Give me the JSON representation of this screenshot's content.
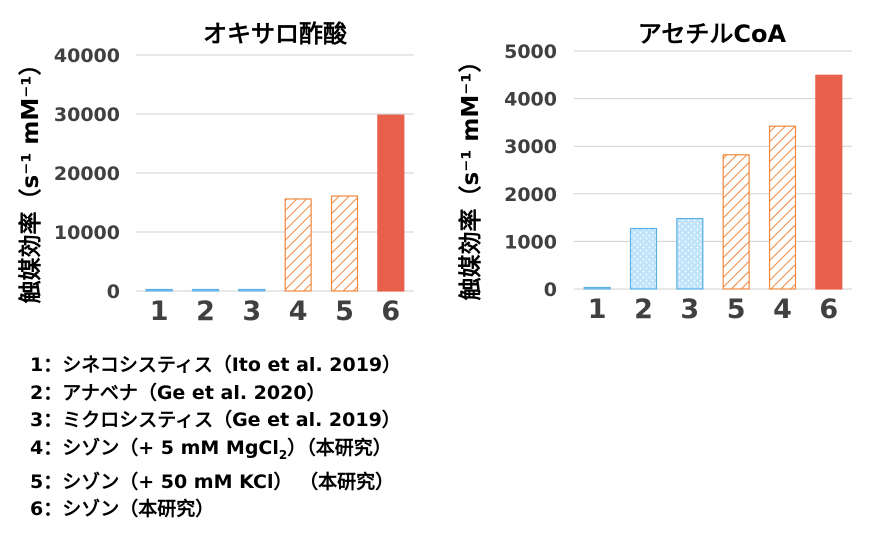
{
  "chart_data": [
    {
      "type": "bar",
      "title": "オキサロ酢酸",
      "ylabel": "触媒効率（s⁻¹ mM⁻¹）",
      "categories": [
        "1",
        "2",
        "3",
        "4",
        "5",
        "6"
      ],
      "values": [
        80,
        150,
        200,
        15600,
        16100,
        29800
      ],
      "ylim": [
        0,
        40000
      ],
      "yticks": [
        "0",
        "10000",
        "20000",
        "30000",
        "40000"
      ],
      "grid": true
    },
    {
      "type": "bar",
      "title": "アセチルCoA",
      "ylabel": "触媒効率（s⁻¹ mM⁻¹）",
      "categories": [
        "1",
        "2",
        "3",
        "5",
        "4",
        "6"
      ],
      "values": [
        20,
        1270,
        1480,
        2820,
        3420,
        4490
      ],
      "ylim": [
        0,
        5000
      ],
      "yticks": [
        "0",
        "1000",
        "2000",
        "3000",
        "4000",
        "5000"
      ],
      "grid": true
    }
  ],
  "styles": {
    "1": {
      "pattern": "solid",
      "fill": "#9dd1f2",
      "stroke": "#5aaee6"
    },
    "2": {
      "pattern": "dots",
      "fill": "#bfe4fa",
      "stroke": "#5aaee6"
    },
    "3": {
      "pattern": "dots",
      "fill": "#bfe4fa",
      "stroke": "#5aaee6"
    },
    "4": {
      "pattern": "hatch",
      "fill": "#ffffff",
      "stroke": "#f0883e"
    },
    "5": {
      "pattern": "hatch",
      "fill": "#ffffff",
      "stroke": "#f0883e"
    },
    "6": {
      "pattern": "solid",
      "fill": "#e8604c",
      "stroke": "#e8604c"
    }
  },
  "colors": {
    "grid": "#d0d0d0",
    "text": "#000000",
    "tick": "#404040"
  },
  "legend": {
    "items": [
      {
        "id": "1",
        "label": "1：シネコシスティス（Ito et al. 2019）"
      },
      {
        "id": "2",
        "label": "2：アナベナ（Ge et al. 2020）"
      },
      {
        "id": "3",
        "label": "3：ミクロシスティス（Ge et al. 2019）"
      },
      {
        "id": "4",
        "label_pre": "4：シゾン（+ 5 mM MgCl",
        "label_sub": "2",
        "label_post": "）（本研究）"
      },
      {
        "id": "5",
        "label": "5：シゾン（+ 50 mM KCl）  （本研究）"
      },
      {
        "id": "6",
        "label": "6：シゾン（本研究）"
      }
    ]
  }
}
